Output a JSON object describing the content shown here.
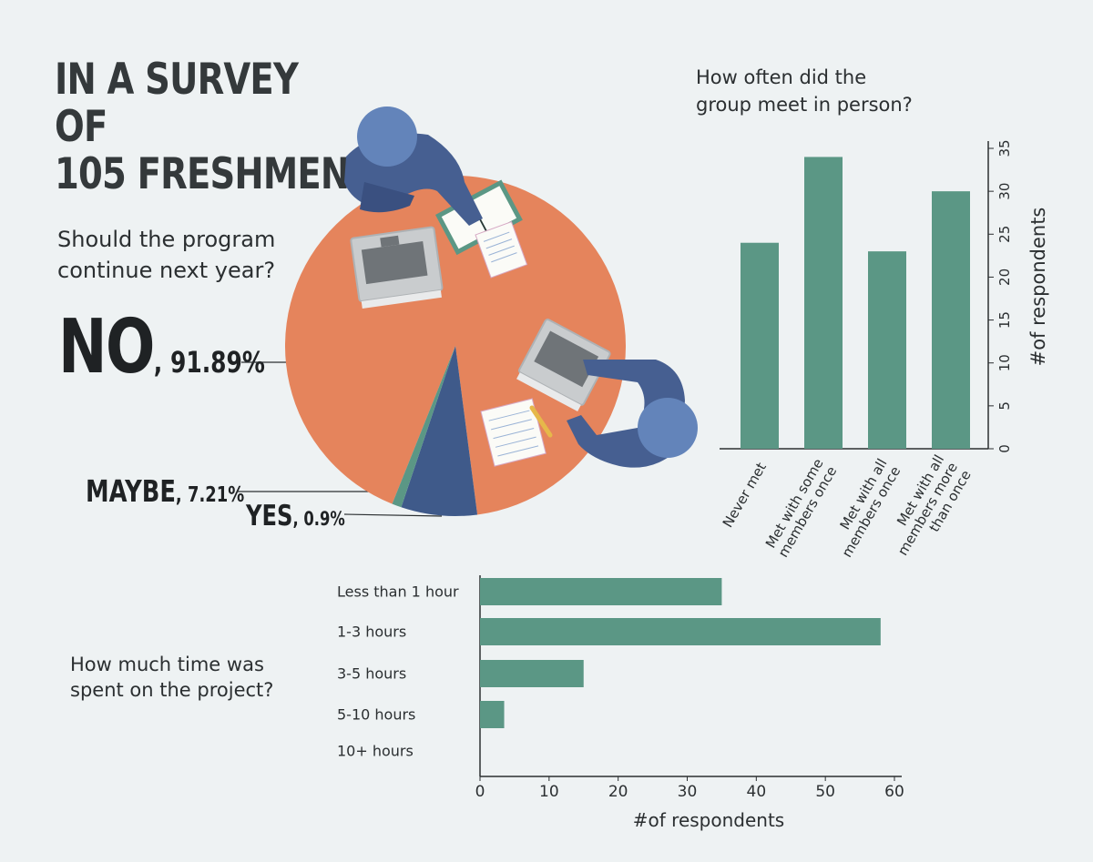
{
  "title": {
    "line1": "IN A SURVEY OF",
    "line2": "105 FRESHMEN"
  },
  "colors": {
    "background": "#eef2f3",
    "table": "#e5845c",
    "maybe": "#3f5a8a",
    "yes": "#5b9785",
    "bars": "#5b9785",
    "person": "#465f91",
    "head": "#6384ba"
  },
  "q_continue": {
    "line1": "Should the program",
    "line2": "continue next year?"
  },
  "q_meet": {
    "line1": "How often did the",
    "line2": "group meet in person?"
  },
  "q_time": {
    "line1": "How much time was",
    "line2": "spent on the project?"
  },
  "pie_labels": {
    "no_word": "NO",
    "no_pct": ", 91.89%",
    "maybe_word": "MAYBE",
    "maybe_pct": ", 7.21%",
    "yes_word": "YES",
    "yes_pct": ", 0.9%"
  },
  "icons": [
    "person-icon",
    "laptop-icon",
    "book-icon",
    "notepad-icon",
    "pencil-icon"
  ],
  "chart_data": [
    {
      "type": "pie",
      "title": "Should the program continue next year?",
      "labels": [
        "NO",
        "MAYBE",
        "YES"
      ],
      "values": [
        91.89,
        7.21,
        0.9
      ]
    },
    {
      "type": "bar",
      "title": "How often did the group meet in person?",
      "categories": [
        "Never met",
        "Met with some members once",
        "Met with all members once",
        "Met with all members more than once"
      ],
      "category_lines": [
        [
          "Never met"
        ],
        [
          "Met with some",
          "members once"
        ],
        [
          "Met with all",
          "members once"
        ],
        [
          "Met with all",
          "members more",
          "than once"
        ]
      ],
      "values": [
        24,
        34,
        23,
        30
      ],
      "ylabel": "#of respondents",
      "ylim": [
        0,
        35
      ],
      "yticks": [
        0,
        5,
        10,
        15,
        20,
        25,
        30,
        35
      ],
      "axis_side": "right"
    },
    {
      "type": "bar",
      "orientation": "horizontal",
      "title": "How much time was spent on the project?",
      "categories": [
        "Less than 1 hour",
        "1-3 hours",
        "3-5 hours",
        "5-10 hours",
        "10+  hours"
      ],
      "values": [
        35,
        58,
        15,
        3.5,
        0
      ],
      "xlabel": "#of respondents",
      "xlim": [
        0,
        60
      ],
      "xticks": [
        0,
        10,
        20,
        30,
        40,
        50,
        60
      ]
    }
  ]
}
